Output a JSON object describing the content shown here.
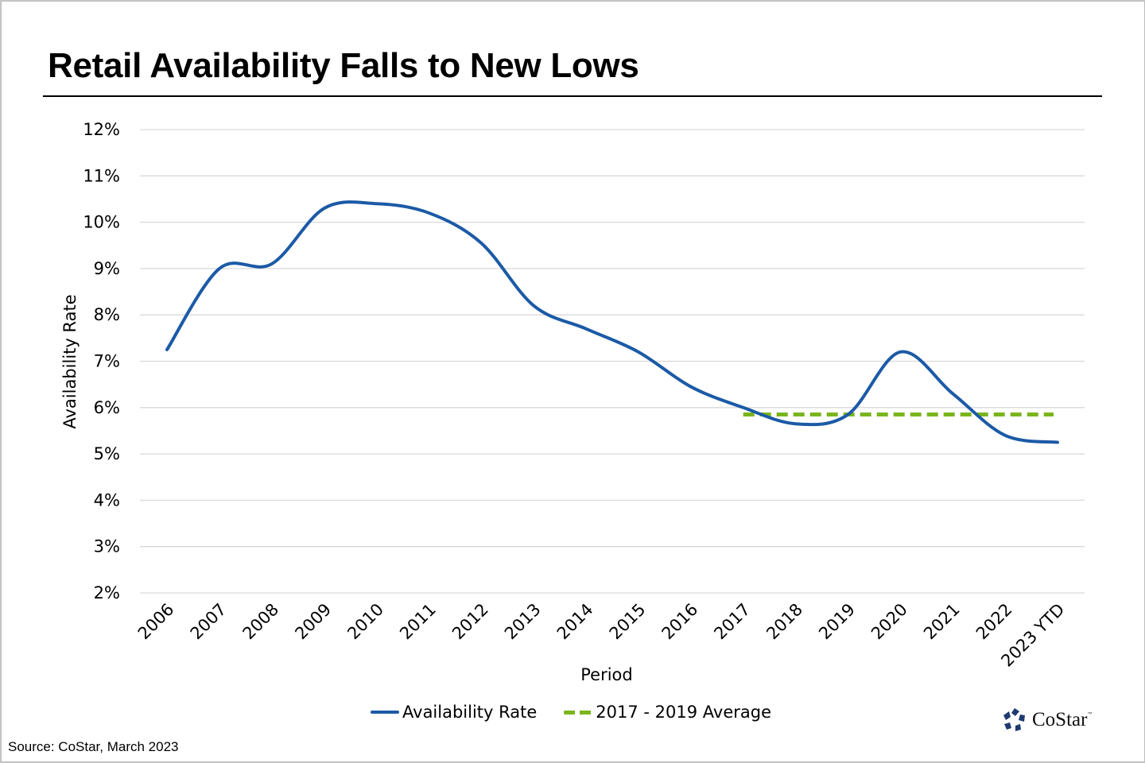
{
  "header": {
    "title": "Retail Availability Falls to New Lows"
  },
  "footer": {
    "source": "Source: CoStar, March 2023",
    "logo_text": "CoStar",
    "logo_tm": "™"
  },
  "colors": {
    "availability_line": "#1b5aa6",
    "average_line": "#7ab51d",
    "gridline": "#d9d9d9",
    "logo": "#1f3a73"
  },
  "chart_data": {
    "type": "line",
    "title": "Retail Availability Falls to New Lows",
    "xlabel": "Period",
    "ylabel": "Availability Rate",
    "ylim": [
      2,
      12
    ],
    "y_ticks": [
      2,
      3,
      4,
      5,
      6,
      7,
      8,
      9,
      10,
      11,
      12
    ],
    "y_tick_labels": [
      "2%",
      "3%",
      "4%",
      "5%",
      "6%",
      "7%",
      "8%",
      "9%",
      "10%",
      "11%",
      "12%"
    ],
    "grid": true,
    "legend_position": "bottom",
    "categories": [
      "2006",
      "2007",
      "2008",
      "2009",
      "2010",
      "2011",
      "2012",
      "2013",
      "2014",
      "2015",
      "2016",
      "2017",
      "2018",
      "2019",
      "2020",
      "2021",
      "2022",
      "2023 YTD"
    ],
    "series": [
      {
        "name": "Availability Rate",
        "style": "solid-smooth",
        "values": [
          7.25,
          9.0,
          9.1,
          10.3,
          10.4,
          10.2,
          9.55,
          8.2,
          7.7,
          7.2,
          6.45,
          6.0,
          5.65,
          5.85,
          7.2,
          6.3,
          5.4,
          5.25
        ]
      },
      {
        "name": "2017 - 2019 Average",
        "style": "dashed",
        "values": [
          null,
          null,
          null,
          null,
          null,
          null,
          null,
          null,
          null,
          null,
          null,
          5.85,
          5.85,
          5.85,
          5.85,
          5.85,
          5.85,
          5.85
        ]
      }
    ]
  }
}
